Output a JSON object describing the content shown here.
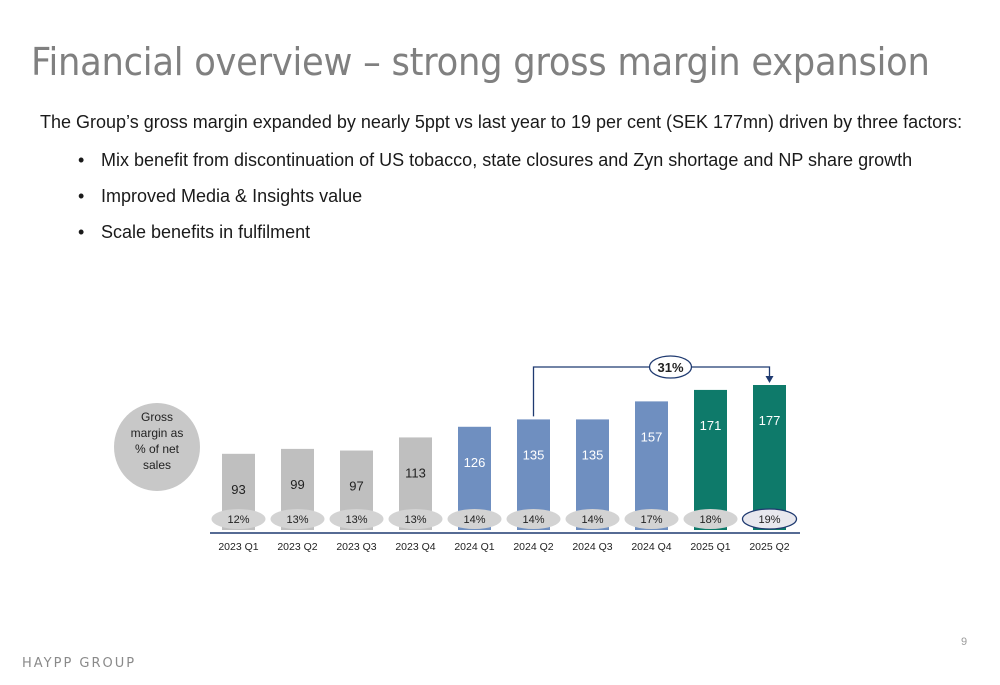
{
  "slide": {
    "title": "Financial overview – strong gross margin expansion",
    "intro": "The Group’s gross margin expanded by nearly 5ppt vs last year to 19 per cent (SEK 177mn) driven by three factors:",
    "bullets": [
      "Mix benefit from discontinuation of US tobacco, state closures and Zyn shortage and NP share growth",
      "Improved Media & Insights value",
      "Scale benefits in fulfilment"
    ],
    "footer_logo": "HAYPP GROUP",
    "page_number": "9"
  },
  "chart_data": {
    "type": "bar",
    "categories": [
      "2023 Q1",
      "2023 Q2",
      "2023 Q3",
      "2023 Q4",
      "2024 Q1",
      "2024 Q2",
      "2024 Q3",
      "2024 Q4",
      "2025 Q1",
      "2025 Q2"
    ],
    "values": [
      93,
      99,
      97,
      113,
      126,
      135,
      135,
      157,
      171,
      177
    ],
    "margins": [
      "12%",
      "13%",
      "13%",
      "13%",
      "14%",
      "14%",
      "14%",
      "17%",
      "18%",
      "19%"
    ],
    "bar_colors": [
      "#bfbfbf",
      "#bfbfbf",
      "#bfbfbf",
      "#bfbfbf",
      "#6f8fc0",
      "#6f8fc0",
      "#6f8fc0",
      "#6f8fc0",
      "#0e7a6a",
      "#0e7a6a"
    ],
    "label_colors": [
      "#222222",
      "#222222",
      "#222222",
      "#222222",
      "#ffffff",
      "#ffffff",
      "#ffffff",
      "#ffffff",
      "#ffffff",
      "#ffffff"
    ],
    "side_label": "Gross margin as % of net sales",
    "growth_label": "31%",
    "growth_from": "2024 Q2",
    "growth_to": "2025 Q2",
    "ylim": [
      0,
      177
    ],
    "axis_color": "#1f3a70"
  }
}
